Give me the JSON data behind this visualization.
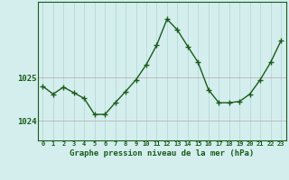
{
  "x": [
    0,
    1,
    2,
    3,
    4,
    5,
    6,
    7,
    8,
    9,
    10,
    11,
    12,
    13,
    14,
    15,
    16,
    17,
    18,
    19,
    20,
    21,
    22,
    23
  ],
  "y": [
    1024.8,
    1024.62,
    1024.78,
    1024.65,
    1024.52,
    1024.15,
    1024.15,
    1024.42,
    1024.68,
    1024.95,
    1025.3,
    1025.75,
    1026.35,
    1026.1,
    1025.72,
    1025.35,
    1024.72,
    1024.42,
    1024.42,
    1024.45,
    1024.62,
    1024.95,
    1025.35,
    1025.85
  ],
  "line_color": "#1a5c1a",
  "marker_color": "#1a5c1a",
  "bg_color": "#d4eeee",
  "grid_color_v": "#b8d8d8",
  "grid_color_h": "#c0b0b0",
  "title": "Graphe pression niveau de la mer (hPa)",
  "xlabel_ticks": [
    "0",
    "1",
    "2",
    "3",
    "4",
    "5",
    "6",
    "7",
    "8",
    "9",
    "10",
    "11",
    "12",
    "13",
    "14",
    "15",
    "16",
    "17",
    "18",
    "19",
    "20",
    "21",
    "22",
    "23"
  ],
  "ytick_labels": [
    "1024",
    "1025"
  ],
  "ytick_values": [
    1024,
    1025
  ],
  "ylim": [
    1023.55,
    1026.75
  ],
  "xlim": [
    -0.5,
    23.5
  ]
}
